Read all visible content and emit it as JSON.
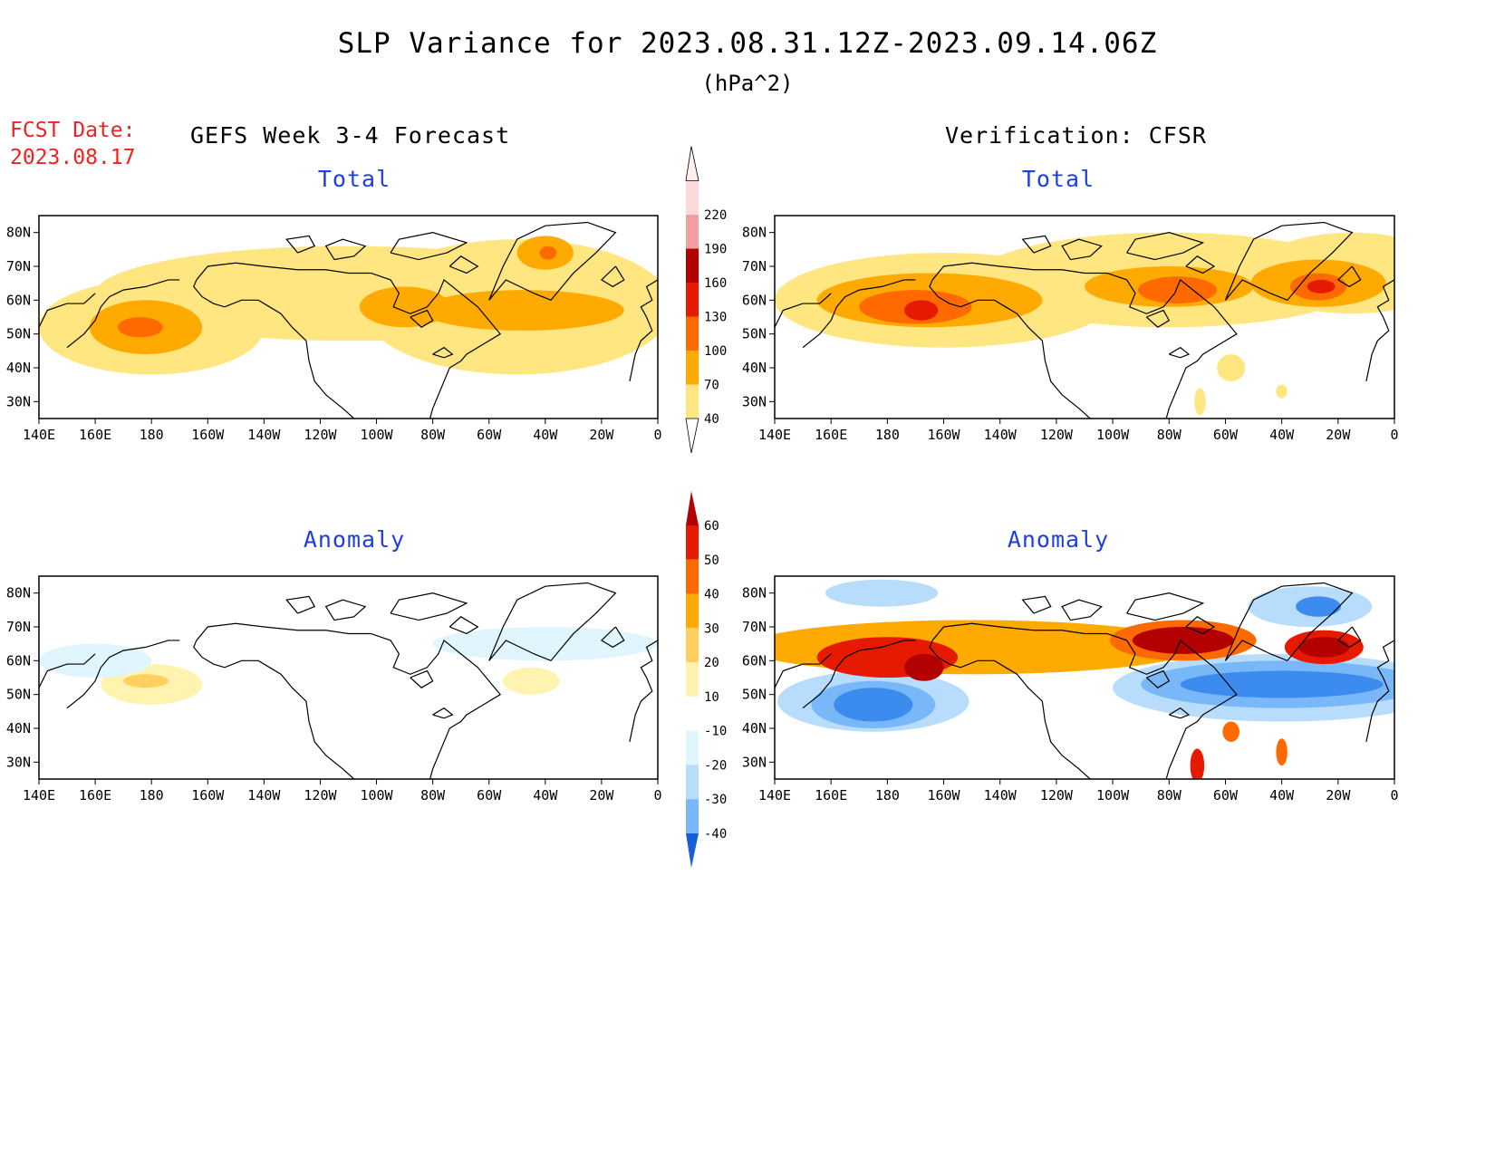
{
  "header": {
    "title": "SLP Variance for 2023.08.31.12Z-2023.09.14.06Z",
    "units": "(hPa^2)",
    "fcst_label": "FCST Date:",
    "fcst_date": "2023.08.17",
    "left_column_title": "GEFS Week 3-4 Forecast",
    "right_column_title": "Verification: CFSR"
  },
  "panels": {
    "forecast_total": {
      "title": "Total"
    },
    "verif_total": {
      "title": "Total"
    },
    "forecast_anomaly": {
      "title": "Anomaly"
    },
    "verif_anomaly": {
      "title": "Anomaly"
    }
  },
  "axes": {
    "lat_labels": [
      "30N",
      "40N",
      "50N",
      "60N",
      "70N",
      "80N"
    ],
    "lat_values": [
      30,
      40,
      50,
      60,
      70,
      80
    ],
    "lon_labels": [
      "140E",
      "160E",
      "180",
      "160W",
      "140W",
      "120W",
      "100W",
      "80W",
      "60W",
      "40W",
      "20W",
      "0"
    ],
    "lon_values": [
      140,
      160,
      180,
      200,
      220,
      240,
      260,
      280,
      300,
      320,
      340,
      360
    ],
    "lat_range": [
      25,
      85
    ],
    "lon_range": [
      140,
      360
    ]
  },
  "colorbars": {
    "total": {
      "ticks": [
        "40",
        "70",
        "100",
        "130",
        "160",
        "190",
        "220"
      ],
      "colors": [
        "#ffe680",
        "#ffaa00",
        "#ff6a00",
        "#e61a00",
        "#b30000",
        "#f0a0a0",
        "#fcd8d8"
      ]
    },
    "anomaly": {
      "ticks": [
        "-40",
        "-30",
        "-20",
        "-10",
        "10",
        "20",
        "30",
        "40",
        "50",
        "60"
      ],
      "colors": [
        "#1560d8",
        "#3c8cf0",
        "#78b8f8",
        "#b8dcfc",
        "#e1f5ff",
        "#ffffff",
        "#fff3b0",
        "#ffd060",
        "#ffaa00",
        "#ff6a00",
        "#e61a00",
        "#b30000"
      ]
    }
  },
  "map_data": {
    "forecast_total": [
      {
        "lon": 180,
        "lat": 52,
        "level": 0,
        "rx": 40,
        "ry": 14
      },
      {
        "lon": 250,
        "lat": 62,
        "level": 0,
        "rx": 90,
        "ry": 14
      },
      {
        "lon": 310,
        "lat": 58,
        "level": 0,
        "rx": 55,
        "ry": 20
      },
      {
        "lon": 178,
        "lat": 52,
        "level": 1,
        "rx": 20,
        "ry": 8
      },
      {
        "lon": 176,
        "lat": 52,
        "level": 2,
        "rx": 8,
        "ry": 3
      },
      {
        "lon": 270,
        "lat": 58,
        "level": 1,
        "rx": 16,
        "ry": 6
      },
      {
        "lon": 312,
        "lat": 57,
        "level": 1,
        "rx": 36,
        "ry": 6
      },
      {
        "lon": 320,
        "lat": 74,
        "level": 1,
        "rx": 10,
        "ry": 5
      },
      {
        "lon": 321,
        "lat": 74,
        "level": 2,
        "rx": 3,
        "ry": 2
      }
    ],
    "verif_total": [
      {
        "lon": 200,
        "lat": 60,
        "level": 0,
        "rx": 60,
        "ry": 14
      },
      {
        "lon": 280,
        "lat": 66,
        "level": 0,
        "rx": 70,
        "ry": 14
      },
      {
        "lon": 345,
        "lat": 68,
        "level": 0,
        "rx": 35,
        "ry": 12
      },
      {
        "lon": 195,
        "lat": 60,
        "level": 1,
        "rx": 40,
        "ry": 8
      },
      {
        "lon": 280,
        "lat": 64,
        "level": 1,
        "rx": 30,
        "ry": 6
      },
      {
        "lon": 333,
        "lat": 65,
        "level": 1,
        "rx": 24,
        "ry": 7
      },
      {
        "lon": 190,
        "lat": 58,
        "level": 2,
        "rx": 20,
        "ry": 5
      },
      {
        "lon": 283,
        "lat": 63,
        "level": 2,
        "rx": 14,
        "ry": 4
      },
      {
        "lon": 333,
        "lat": 64,
        "level": 2,
        "rx": 10,
        "ry": 4
      },
      {
        "lon": 192,
        "lat": 57,
        "level": 3,
        "rx": 6,
        "ry": 3
      },
      {
        "lon": 334,
        "lat": 64,
        "level": 3,
        "rx": 5,
        "ry": 2
      },
      {
        "lon": 302,
        "lat": 40,
        "level": 0,
        "rx": 5,
        "ry": 4
      },
      {
        "lon": 291,
        "lat": 30,
        "level": 0,
        "rx": 2,
        "ry": 4
      },
      {
        "lon": 320,
        "lat": 33,
        "level": 0,
        "rx": 2,
        "ry": 2
      }
    ],
    "forecast_anomaly": [
      {
        "lon": 180,
        "lat": 53,
        "level": 6,
        "rx": 18,
        "ry": 6
      },
      {
        "lon": 178,
        "lat": 54,
        "level": 7,
        "rx": 8,
        "ry": 2
      },
      {
        "lon": 315,
        "lat": 54,
        "level": 6,
        "rx": 10,
        "ry": 4
      },
      {
        "lon": 320,
        "lat": 65,
        "level": 4,
        "rx": 40,
        "ry": 5
      },
      {
        "lon": 160,
        "lat": 60,
        "level": 4,
        "rx": 20,
        "ry": 5
      }
    ],
    "verif_anomaly": [
      {
        "lon": 175,
        "lat": 48,
        "level": 3,
        "rx": 34,
        "ry": 9
      },
      {
        "lon": 175,
        "lat": 47,
        "level": 2,
        "rx": 22,
        "ry": 7
      },
      {
        "lon": 175,
        "lat": 47,
        "level": 1,
        "rx": 14,
        "ry": 5
      },
      {
        "lon": 178,
        "lat": 80,
        "level": 3,
        "rx": 20,
        "ry": 4
      },
      {
        "lon": 320,
        "lat": 52,
        "level": 3,
        "rx": 60,
        "ry": 10
      },
      {
        "lon": 320,
        "lat": 53,
        "level": 2,
        "rx": 50,
        "ry": 7
      },
      {
        "lon": 320,
        "lat": 53,
        "level": 1,
        "rx": 36,
        "ry": 4
      },
      {
        "lon": 330,
        "lat": 76,
        "level": 3,
        "rx": 22,
        "ry": 6
      },
      {
        "lon": 333,
        "lat": 76,
        "level": 1,
        "rx": 8,
        "ry": 3
      },
      {
        "lon": 210,
        "lat": 64,
        "level": 8,
        "rx": 80,
        "ry": 8
      },
      {
        "lon": 285,
        "lat": 66,
        "level": 9,
        "rx": 26,
        "ry": 6
      },
      {
        "lon": 180,
        "lat": 61,
        "level": 10,
        "rx": 25,
        "ry": 6
      },
      {
        "lon": 193,
        "lat": 58,
        "level": 11,
        "rx": 7,
        "ry": 4
      },
      {
        "lon": 285,
        "lat": 66,
        "level": 11,
        "rx": 18,
        "ry": 4
      },
      {
        "lon": 335,
        "lat": 64,
        "level": 10,
        "rx": 14,
        "ry": 5
      },
      {
        "lon": 335,
        "lat": 64,
        "level": 11,
        "rx": 9,
        "ry": 3
      },
      {
        "lon": 290,
        "lat": 29,
        "level": 10,
        "rx": 2.5,
        "ry": 5
      },
      {
        "lon": 302,
        "lat": 39,
        "level": 9,
        "rx": 3,
        "ry": 3
      },
      {
        "lon": 320,
        "lat": 33,
        "level": 9,
        "rx": 2,
        "ry": 4
      }
    ]
  }
}
